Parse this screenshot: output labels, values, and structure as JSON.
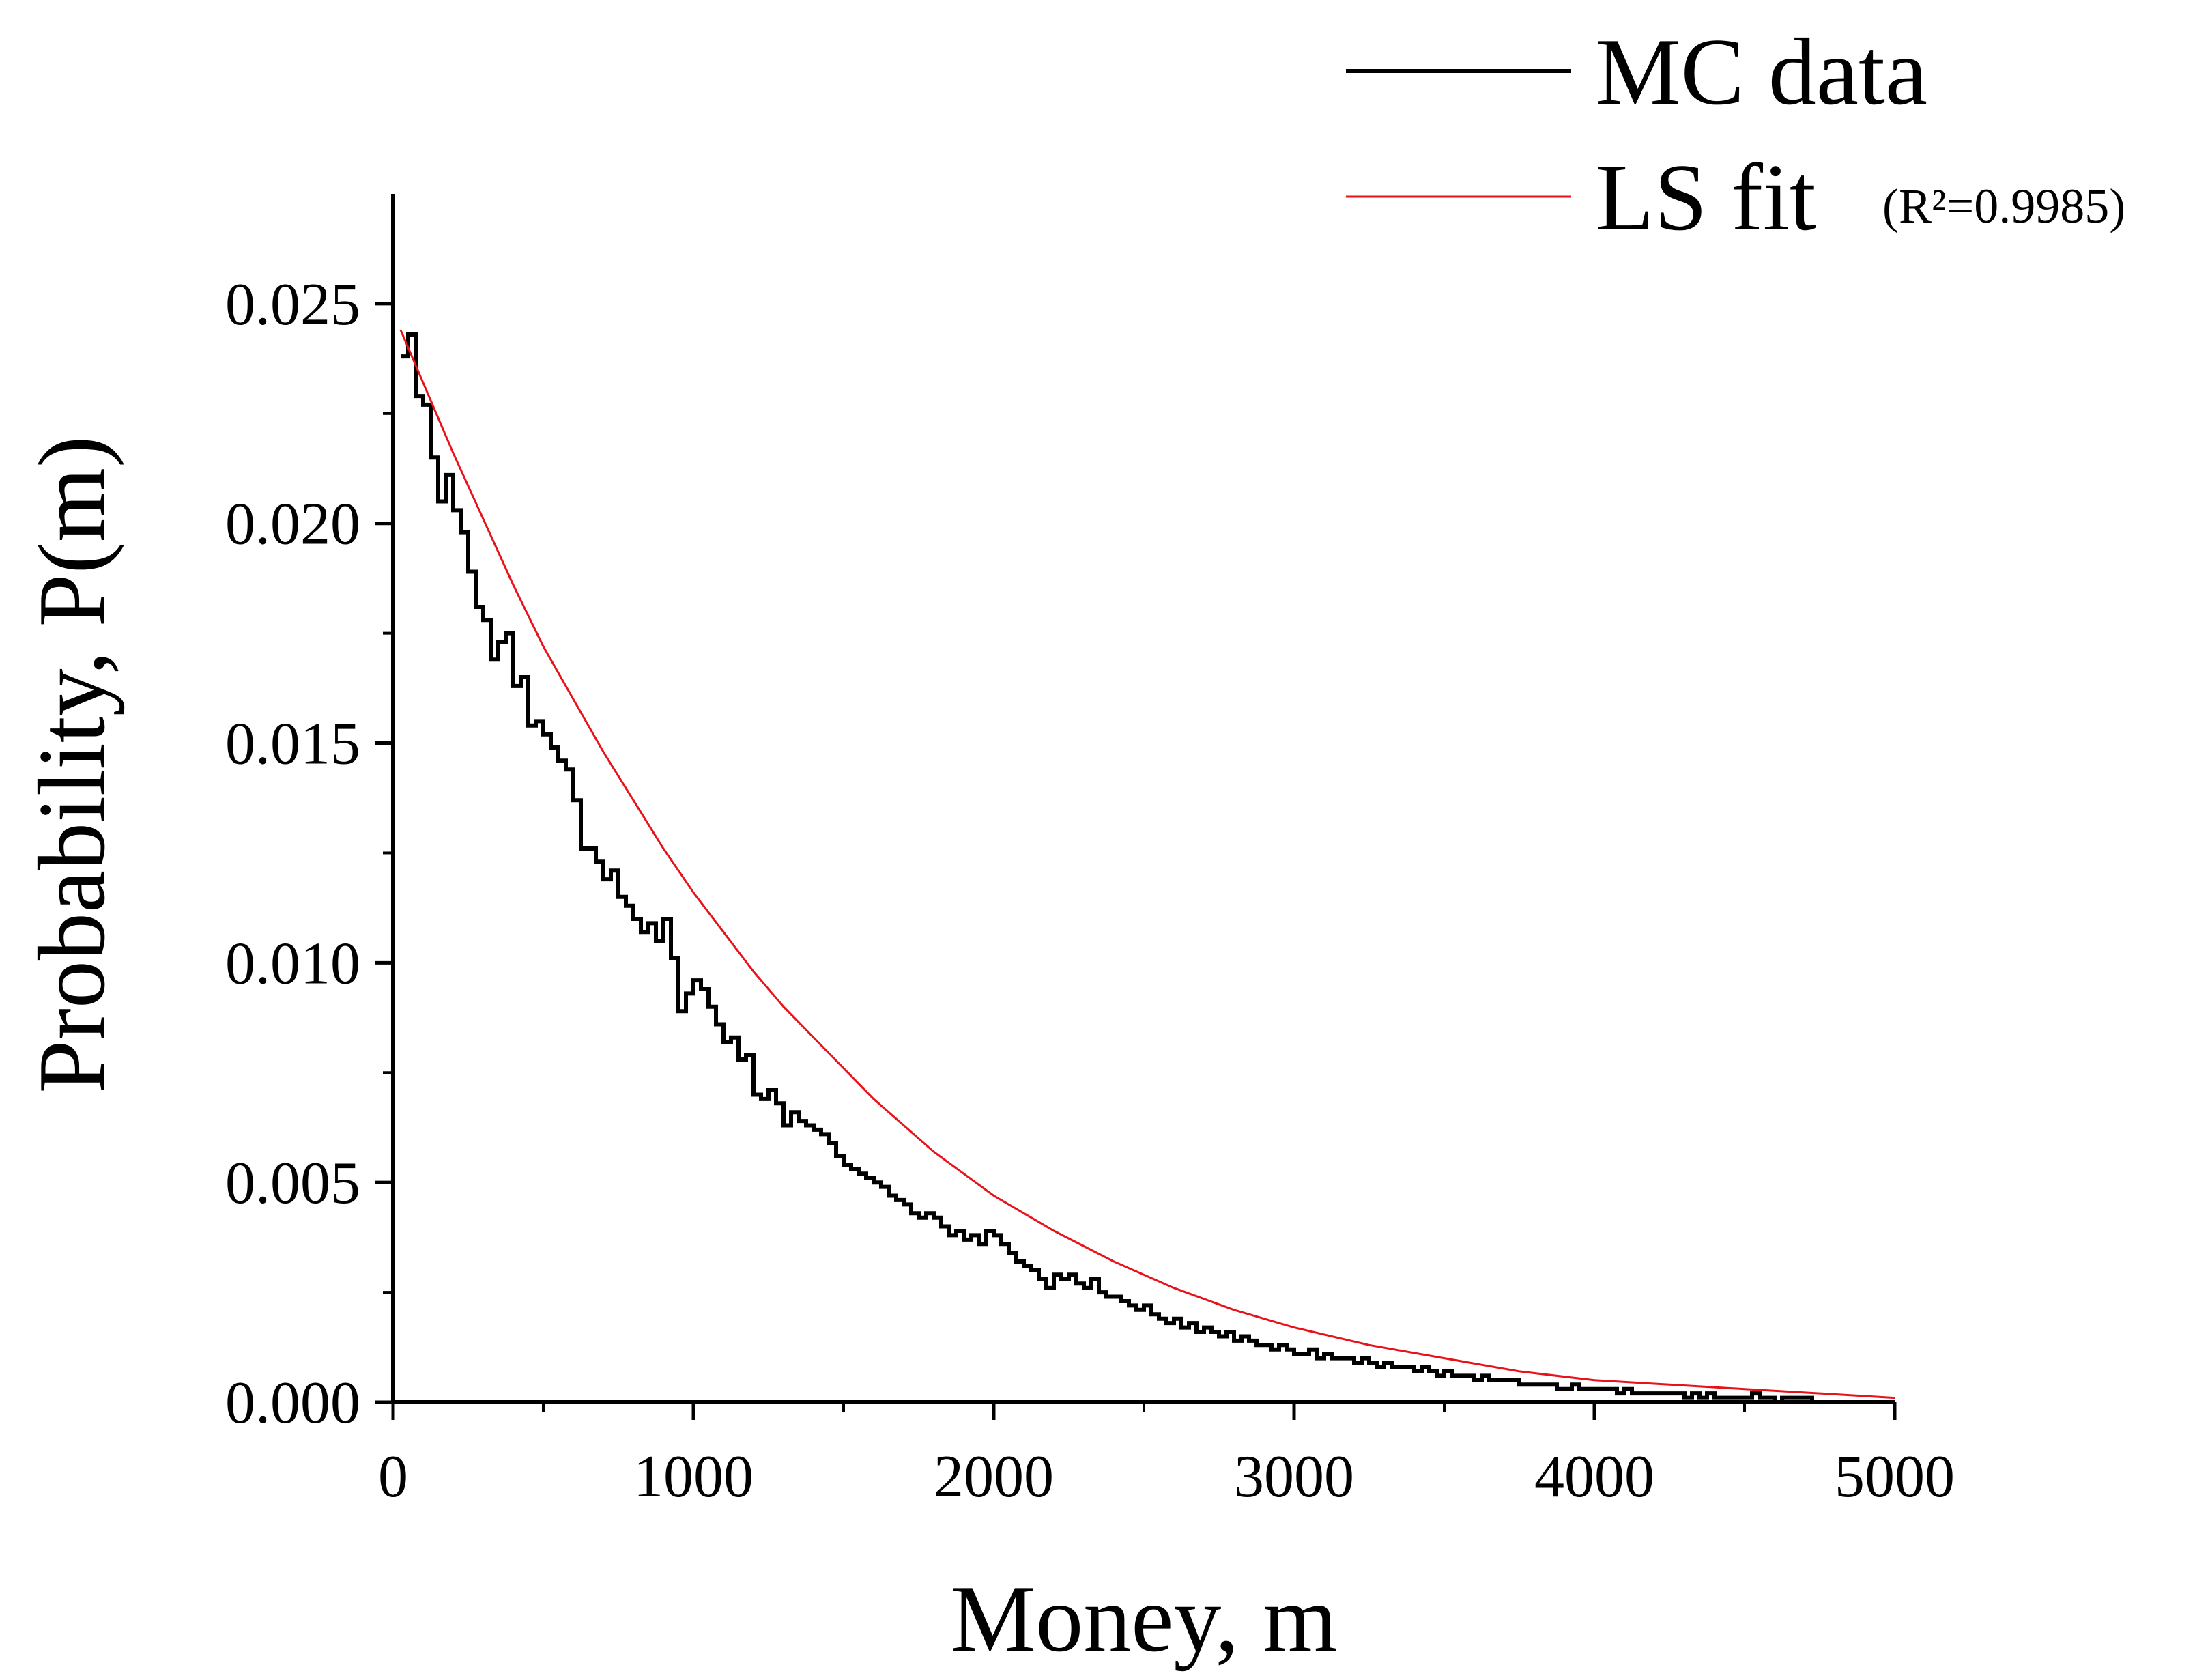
{
  "chart_data": {
    "type": "line",
    "xlabel": "Money, m",
    "ylabel": "Probability, P(m)",
    "xlim": [
      0,
      5000
    ],
    "ylim": [
      0,
      0.0275
    ],
    "x_ticks": [
      0,
      1000,
      2000,
      3000,
      4000,
      5000
    ],
    "x_tick_labels": [
      "0",
      "1000",
      "2000",
      "3000",
      "4000",
      "5000"
    ],
    "y_ticks": [
      0,
      0.005,
      0.01,
      0.015,
      0.02,
      0.025
    ],
    "y_tick_labels": [
      "0.000",
      "0.005",
      "0.010",
      "0.015",
      "0.020",
      "0.025"
    ],
    "x_minor_step": 500,
    "y_minor_step": 0.0025,
    "grid": false,
    "legend_position": "top-right",
    "series": [
      {
        "name": "MC data",
        "style": "step",
        "color": "#000000",
        "bin_width": 25,
        "x_start": 25,
        "values": [
          0.0238,
          0.0243,
          0.0229,
          0.0227,
          0.0215,
          0.0205,
          0.0211,
          0.0203,
          0.0198,
          0.0189,
          0.0181,
          0.0178,
          0.0169,
          0.0173,
          0.0175,
          0.0163,
          0.0165,
          0.0154,
          0.0155,
          0.0152,
          0.0149,
          0.0146,
          0.0144,
          0.0137,
          0.0126,
          0.0126,
          0.0123,
          0.0119,
          0.0121,
          0.0115,
          0.0113,
          0.011,
          0.0107,
          0.0109,
          0.0105,
          0.011,
          0.0101,
          0.0089,
          0.0093,
          0.0096,
          0.0094,
          0.009,
          0.0086,
          0.0082,
          0.0083,
          0.0078,
          0.0079,
          0.007,
          0.0069,
          0.0071,
          0.0068,
          0.0063,
          0.0066,
          0.0064,
          0.0063,
          0.0062,
          0.0061,
          0.0059,
          0.0056,
          0.0054,
          0.0053,
          0.0052,
          0.0051,
          0.005,
          0.0049,
          0.0047,
          0.0046,
          0.0045,
          0.0043,
          0.0042,
          0.0043,
          0.0042,
          0.004,
          0.0038,
          0.0039,
          0.0037,
          0.0038,
          0.0036,
          0.0039,
          0.0038,
          0.0036,
          0.0034,
          0.0032,
          0.0031,
          0.003,
          0.0028,
          0.0026,
          0.0029,
          0.0028,
          0.0029,
          0.0027,
          0.0026,
          0.0028,
          0.0025,
          0.0024,
          0.0024,
          0.0023,
          0.0022,
          0.0021,
          0.0022,
          0.002,
          0.0019,
          0.0018,
          0.0019,
          0.0017,
          0.0018,
          0.0016,
          0.0017,
          0.0016,
          0.0015,
          0.0016,
          0.0014,
          0.0015,
          0.0014,
          0.0013,
          0.0013,
          0.0012,
          0.0013,
          0.0012,
          0.0011,
          0.0011,
          0.0012,
          0.001,
          0.0011,
          0.001,
          0.001,
          0.001,
          0.0009,
          0.001,
          0.0009,
          0.0008,
          0.0009,
          0.0008,
          0.0008,
          0.0008,
          0.0007,
          0.0008,
          0.0007,
          0.0006,
          0.0007,
          0.0006,
          0.0006,
          0.0006,
          0.0005,
          0.0006,
          0.0005,
          0.0005,
          0.0005,
          0.0005,
          0.0004,
          0.0004,
          0.0004,
          0.0004,
          0.0004,
          0.0003,
          0.0003,
          0.0004,
          0.0003,
          0.0003,
          0.0003,
          0.0003,
          0.0003,
          0.0002,
          0.0003,
          0.0002,
          0.0002,
          0.0002,
          0.0002,
          0.0002,
          0.0002,
          0.0002,
          0.0001,
          0.0002,
          0.0001,
          0.0002,
          0.0001,
          0.0001,
          0.0001,
          0.0001,
          0.0001,
          0.0002,
          0.0001,
          0.0001,
          0.0,
          0.0001,
          0.0001,
          0.0001,
          0.0001,
          0.0
        ]
      },
      {
        "name": "LS fit",
        "style": "line",
        "color": "#e8121a",
        "x": [
          25,
          100,
          200,
          300,
          400,
          500,
          600,
          700,
          800,
          900,
          1000,
          1100,
          1200,
          1300,
          1400,
          1500,
          1600,
          1700,
          1800,
          1900,
          2000,
          2200,
          2400,
          2600,
          2800,
          3000,
          3250,
          3500,
          3750,
          4000,
          4250,
          4500,
          4750,
          5000
        ],
        "values": [
          0.0244,
          0.0232,
          0.0216,
          0.0201,
          0.0186,
          0.0172,
          0.016,
          0.0148,
          0.0137,
          0.0126,
          0.0116,
          0.0107,
          0.0098,
          0.009,
          0.0083,
          0.0076,
          0.0069,
          0.0063,
          0.0057,
          0.0052,
          0.0047,
          0.0039,
          0.0032,
          0.0026,
          0.0021,
          0.0017,
          0.0013,
          0.001,
          0.0007,
          0.0005,
          0.0004,
          0.0003,
          0.0002,
          0.0001
        ]
      }
    ],
    "annotations": [
      "(R²=0.9985)"
    ]
  }
}
